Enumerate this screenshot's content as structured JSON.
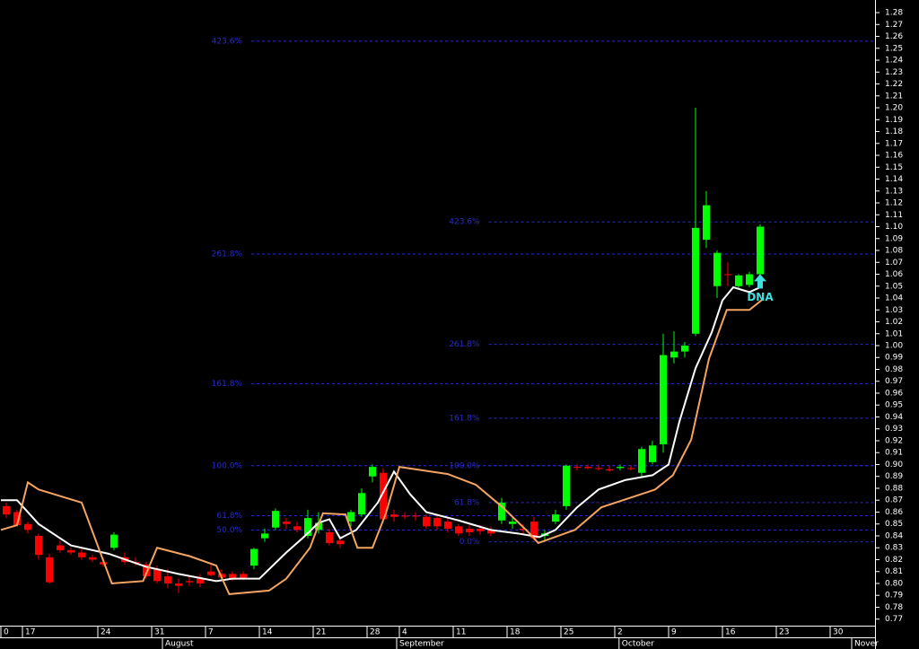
{
  "chart_data": {
    "type": "candlestick",
    "xlim": [
      -0.5,
      80.5
    ],
    "ylim": [
      0.7645,
      1.2906
    ],
    "yticks": [
      0.77,
      0.78,
      0.79,
      {
        "value": 0.8,
        "label": "0.80"
      },
      0.81,
      0.82,
      0.83,
      0.84,
      0.85,
      0.86,
      0.87,
      0.88,
      0.89,
      {
        "value": 0.9,
        "label": "0.90"
      },
      0.91,
      0.92,
      0.93,
      0.94,
      0.95,
      0.96,
      0.97,
      0.98,
      0.99,
      {
        "value": 1,
        "label": "1.00"
      },
      1.01,
      1.02,
      1.03,
      1.04,
      1.05,
      1.06,
      1.07,
      1.08,
      1.09,
      {
        "value": 1.1,
        "label": "1.10"
      },
      1.11,
      1.12,
      1.13,
      1.14,
      1.15,
      1.16,
      1.17,
      1.18,
      1.19,
      {
        "value": 1.2,
        "label": "1.20"
      },
      1.21,
      1.22,
      1.23,
      1.24,
      1.25,
      1.26,
      1.27,
      1.28
    ],
    "xticks": [
      {
        "value": -0.5,
        "label": "0"
      },
      {
        "value": 1.5,
        "label": "17"
      },
      {
        "value": 8.5,
        "label": "24"
      },
      {
        "value": 13.5,
        "label": "31"
      },
      {
        "value": 18.5,
        "label": "7"
      },
      {
        "value": 23.5,
        "label": "14"
      },
      {
        "value": 28.5,
        "label": "21"
      },
      {
        "value": 33.5,
        "label": "28"
      },
      {
        "value": 36.5,
        "label": "4"
      },
      {
        "value": 41.5,
        "label": "11"
      },
      {
        "value": 46.5,
        "label": "18"
      },
      {
        "value": 51.5,
        "label": "25"
      },
      {
        "value": 56.5,
        "label": "2"
      },
      {
        "value": 61.5,
        "label": "9"
      },
      {
        "value": 66.5,
        "label": "16"
      },
      {
        "value": 71.5,
        "label": "23"
      },
      {
        "value": 76.5,
        "label": "30"
      }
    ],
    "months": [
      {
        "value": 14.5,
        "label": "August"
      },
      {
        "value": 36.25,
        "label": "September"
      },
      {
        "value": 56.9,
        "label": "October"
      },
      {
        "value": 78.5,
        "label": "Nover"
      }
    ],
    "up_color": "#00ff00",
    "down_color": "#ff0000",
    "x": [
      0,
      1,
      2,
      3,
      4,
      5,
      6,
      7,
      8,
      9,
      10,
      11,
      12,
      13,
      14,
      15,
      16,
      17,
      18,
      19,
      20,
      21,
      22,
      23,
      24,
      25,
      26,
      27,
      28,
      29,
      30,
      31,
      32,
      33,
      34,
      35,
      36,
      37,
      38,
      39,
      40,
      41,
      42,
      43,
      44,
      45,
      46,
      47,
      48,
      49,
      50,
      51,
      52,
      53,
      54,
      55,
      56,
      57,
      58,
      59,
      60,
      61,
      62,
      63,
      64,
      65,
      66,
      67,
      68,
      69,
      70
    ],
    "open": [
      0.865,
      0.86,
      0.85,
      0.84,
      0.822,
      0.832,
      0.828,
      0.826,
      0.822,
      0.818,
      0.83,
      0.822,
      0.818,
      0.816,
      0.812,
      0.806,
      0.8,
      0.802,
      0.804,
      0.81,
      0.808,
      0.808,
      0.808,
      0.815,
      0.838,
      0.847,
      0.852,
      0.848,
      0.84,
      0.845,
      0.843,
      0.836,
      0.852,
      0.858,
      0.89,
      0.893,
      0.858,
      0.857,
      0.857,
      0.856,
      0.855,
      0.852,
      0.848,
      0.846,
      0.846,
      0.845,
      0.853,
      0.85,
      0.846,
      0.852,
      0.84,
      0.852,
      0.865,
      0.898,
      0.898,
      0.897,
      0.896,
      0.897,
      0.897,
      0.893,
      0.902,
      0.917,
      0.99,
      0.995,
      1.01,
      1.089,
      1.05,
      1.06,
      1.05,
      1.051,
      1.06
    ],
    "high": [
      0.868,
      0.862,
      0.852,
      0.842,
      0.825,
      0.836,
      0.83,
      0.829,
      0.824,
      0.822,
      0.843,
      0.826,
      0.822,
      0.818,
      0.815,
      0.812,
      0.804,
      0.806,
      0.808,
      0.816,
      0.812,
      0.81,
      0.81,
      0.83,
      0.846,
      0.863,
      0.855,
      0.852,
      0.862,
      0.86,
      0.846,
      0.84,
      0.862,
      0.88,
      0.9,
      0.897,
      0.862,
      0.86,
      0.86,
      0.858,
      0.857,
      0.855,
      0.85,
      0.849,
      0.849,
      0.848,
      0.872,
      0.855,
      0.85,
      0.856,
      0.845,
      0.862,
      0.9,
      0.9,
      0.9,
      0.9,
      0.899,
      0.9,
      0.899,
      0.915,
      0.92,
      1.01,
      1.012,
      1.003,
      1.2,
      1.13,
      1.08,
      1.07,
      1.06,
      1.062,
      1.102
    ],
    "low": [
      0.855,
      0.848,
      0.842,
      0.82,
      0.8,
      0.826,
      0.824,
      0.82,
      0.818,
      0.814,
      0.828,
      0.816,
      0.815,
      0.804,
      0.8,
      0.796,
      0.792,
      0.798,
      0.797,
      0.806,
      0.804,
      0.802,
      0.803,
      0.812,
      0.835,
      0.845,
      0.846,
      0.843,
      0.838,
      0.842,
      0.832,
      0.83,
      0.848,
      0.856,
      0.885,
      0.851,
      0.852,
      0.854,
      0.853,
      0.846,
      0.845,
      0.843,
      0.84,
      0.84,
      0.841,
      0.84,
      0.85,
      0.846,
      0.842,
      0.836,
      0.836,
      0.85,
      0.862,
      0.895,
      0.896,
      0.895,
      0.894,
      0.895,
      0.895,
      0.89,
      0.9,
      0.91,
      0.985,
      0.99,
      1.008,
      1.082,
      1.04,
      1.05,
      1.048,
      1.049,
      1.058
    ],
    "close": [
      0.858,
      0.849,
      0.845,
      0.824,
      0.801,
      0.828,
      0.826,
      0.822,
      0.82,
      0.816,
      0.841,
      0.818,
      0.817,
      0.806,
      0.802,
      0.8,
      0.798,
      0.801,
      0.8,
      0.807,
      0.805,
      0.804,
      0.804,
      0.829,
      0.842,
      0.861,
      0.85,
      0.845,
      0.855,
      0.851,
      0.834,
      0.833,
      0.86,
      0.876,
      0.898,
      0.854,
      0.856,
      0.857,
      0.857,
      0.848,
      0.848,
      0.846,
      0.842,
      0.843,
      0.844,
      0.842,
      0.868,
      0.852,
      0.845,
      0.838,
      0.842,
      0.858,
      0.899,
      0.898,
      0.897,
      0.897,
      0.895,
      0.898,
      0.897,
      0.913,
      0.916,
      0.992,
      0.995,
      1.0,
      1.099,
      1.118,
      1.078,
      1.06,
      1.059,
      1.06,
      1.1
    ],
    "lines": [
      {
        "color": "#ffffff",
        "x": [
          -0.5,
          1,
          3,
          6,
          9.5,
          13,
          16,
          19.5,
          21,
          23.5,
          26,
          27.5,
          29,
          30,
          31,
          32.5,
          34.5,
          36,
          37.5,
          39,
          42,
          45,
          47.5,
          49.5,
          51,
          53,
          55,
          57.5,
          60,
          61.5,
          62.5,
          64,
          65.5,
          66.5,
          67.5,
          69,
          70
        ],
        "values": [
          0.87,
          0.87,
          0.85,
          0.832,
          0.825,
          0.814,
          0.808,
          0.802,
          0.804,
          0.804,
          0.826,
          0.838,
          0.851,
          0.854,
          0.838,
          0.845,
          0.868,
          0.894,
          0.875,
          0.86,
          0.853,
          0.845,
          0.842,
          0.839,
          0.845,
          0.864,
          0.879,
          0.887,
          0.891,
          0.9,
          0.936,
          0.981,
          1.011,
          1.038,
          1.049,
          1.045,
          1.049
        ]
      },
      {
        "color": "#f4a460",
        "x": [
          -0.5,
          1,
          2,
          3,
          7,
          9.8,
          12.7,
          14,
          17,
          19.5,
          20.7,
          24.4,
          26,
          28.2,
          29.4,
          31.5,
          32.6,
          34,
          35.25,
          36.5,
          41,
          43.6,
          46.1,
          48.6,
          49.4,
          52.8,
          55.25,
          58.6,
          60.25,
          61.9,
          63.6,
          65.25,
          66.9,
          69,
          70.25
        ],
        "values": [
          0.845,
          0.849,
          0.885,
          0.879,
          0.868,
          0.8,
          0.802,
          0.83,
          0.823,
          0.815,
          0.791,
          0.794,
          0.804,
          0.83,
          0.859,
          0.858,
          0.83,
          0.83,
          0.859,
          0.898,
          0.892,
          0.883,
          0.864,
          0.842,
          0.834,
          0.845,
          0.864,
          0.874,
          0.879,
          0.891,
          0.921,
          0.989,
          1.03,
          1.03,
          1.039
        ]
      }
    ],
    "fib_sets": [
      {
        "color": "#2a2ad0",
        "x_start": 22.75,
        "levels": [
          {
            "label": "423.6%",
            "value": 1.256
          },
          {
            "label": "261.8%",
            "value": 1.077
          },
          {
            "label": "161.8%",
            "value": 0.968
          },
          {
            "label": "100.0%",
            "value": 0.899
          },
          {
            "label": "61.8%",
            "value": 0.857
          },
          {
            "label": "50.0%",
            "value": 0.845
          }
        ]
      },
      {
        "color": "#2a2ad0",
        "x_start": 44.8,
        "levels": [
          {
            "label": "423.6%",
            "value": 1.104
          },
          {
            "label": "261.8%",
            "value": 1.001
          },
          {
            "label": "161.8%",
            "value": 0.939
          },
          {
            "label": "100.0%",
            "value": 0.899
          },
          {
            "label": "61.8%",
            "value": 0.868
          },
          {
            "label": "0.0%",
            "value": 0.835
          }
        ]
      }
    ],
    "annotations": [
      {
        "text": "DNA",
        "x": 70,
        "y": 1.045,
        "color": "#40e0e0"
      }
    ]
  }
}
